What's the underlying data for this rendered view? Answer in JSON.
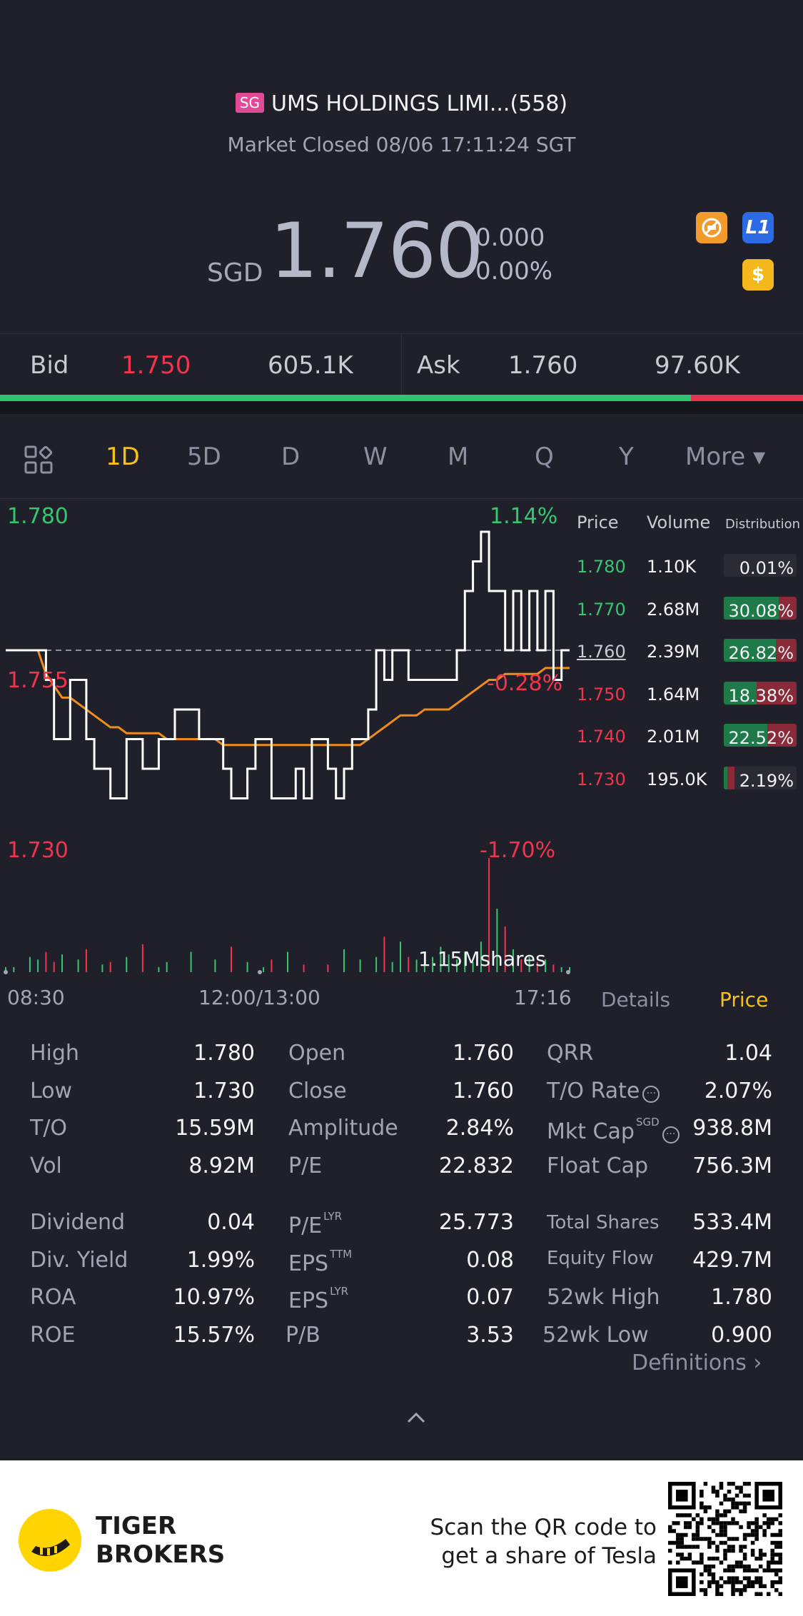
{
  "header": {
    "exchange_tag": "SG",
    "stock_name": "UMS HOLDINGS LIMI...(558)",
    "status": "Market Closed 08/06 17:11:24 SGT"
  },
  "quote": {
    "currency": "SGD",
    "price": "1.760",
    "change": "0.000",
    "change_pct": "0.00%",
    "badges": [
      "no-short-icon",
      "level1-badge",
      "dollar-badge"
    ],
    "badge_l1": "L1",
    "badge_dollar": "$"
  },
  "bidask": {
    "bid_label": "Bid",
    "bid_price": "1.750",
    "bid_size": "605.1K",
    "ask_label": "Ask",
    "ask_price": "1.760",
    "ask_size": "97.60K",
    "bid_share": 0.86
  },
  "periods": [
    "1D",
    "5D",
    "D",
    "W",
    "M",
    "Q",
    "Y",
    "More ▾"
  ],
  "active_period": "1D",
  "chart": {
    "y_high": "1.780",
    "y_high_pct": "1.14%",
    "y_mid_left": "1.755",
    "y_mid_pct": "-0.28%",
    "y_low": "1.730",
    "y_low_pct": "-1.70%",
    "volume_label": "1.15Mshares",
    "time_start": "08:30",
    "time_mid": "12:00/13:00",
    "time_end": "17:16"
  },
  "chart_data": {
    "type": "line",
    "title": "UMS HOLDINGS intraday 1D",
    "ylim": [
      1.73,
      1.78
    ],
    "prev_close": 1.76,
    "series": [
      {
        "name": "price",
        "values": [
          1.76,
          1.76,
          1.76,
          1.76,
          1.76,
          1.755,
          1.745,
          1.745,
          1.755,
          1.755,
          1.745,
          1.74,
          1.74,
          1.735,
          1.735,
          1.745,
          1.745,
          1.74,
          1.74,
          1.745,
          1.745,
          1.75,
          1.75,
          1.75,
          1.745,
          1.745,
          1.745,
          1.74,
          1.735,
          1.735,
          1.74,
          1.745,
          1.745,
          1.735,
          1.735,
          1.735,
          1.74,
          1.735,
          1.745,
          1.745,
          1.74,
          1.735,
          1.74,
          1.745,
          1.745,
          1.75,
          1.76,
          1.755,
          1.76,
          1.76,
          1.755,
          1.755,
          1.755,
          1.755,
          1.755,
          1.755,
          1.76,
          1.77,
          1.775,
          1.78,
          1.77,
          1.77,
          1.76,
          1.77,
          1.76,
          1.77,
          1.76,
          1.77,
          1.755,
          1.76,
          1.76
        ]
      },
      {
        "name": "avg",
        "values": [
          1.76,
          1.76,
          1.76,
          1.76,
          1.76,
          1.756,
          1.754,
          1.752,
          1.752,
          1.751,
          1.75,
          1.749,
          1.748,
          1.747,
          1.747,
          1.746,
          1.746,
          1.746,
          1.746,
          1.746,
          1.745,
          1.745,
          1.745,
          1.745,
          1.745,
          1.745,
          1.745,
          1.744,
          1.744,
          1.744,
          1.744,
          1.744,
          1.744,
          1.744,
          1.744,
          1.744,
          1.744,
          1.744,
          1.744,
          1.744,
          1.744,
          1.744,
          1.744,
          1.744,
          1.744,
          1.745,
          1.746,
          1.747,
          1.748,
          1.749,
          1.749,
          1.749,
          1.75,
          1.75,
          1.75,
          1.75,
          1.751,
          1.752,
          1.753,
          1.754,
          1.755,
          1.755,
          1.756,
          1.756,
          1.756,
          1.756,
          1.756,
          1.757,
          1.757,
          1.757,
          1.757
        ]
      }
    ],
    "volume": [
      0.02,
      0.02,
      0.0,
      0.06,
      0.05,
      0.08,
      0.04,
      0.07,
      0.0,
      0.05,
      0.09,
      0.0,
      0.03,
      0.04,
      0.0,
      0.06,
      0.0,
      0.11,
      0.0,
      0.02,
      0.04,
      0.0,
      0.0,
      0.08,
      0.0,
      0.0,
      0.05,
      0.0,
      0.1,
      0.0,
      0.04,
      0.0,
      0.02,
      0.05,
      0.0,
      0.08,
      0.0,
      0.03,
      0.0,
      0.0,
      0.03,
      0.0,
      0.09,
      0.0,
      0.05,
      0.0,
      0.06,
      0.14,
      0.04,
      0.12,
      0.06,
      0.05,
      0.08,
      0.06,
      0.1,
      0.07,
      0.05,
      0.08,
      0.04,
      0.12,
      0.45,
      0.25,
      0.18,
      0.09,
      0.05,
      0.06,
      0.04,
      0.05,
      0.03,
      0.02,
      0.02
    ]
  },
  "distribution": {
    "headers": [
      "Price",
      "Volume",
      "Distribution"
    ],
    "rows": [
      {
        "price": "1.780",
        "volume": "1.10K",
        "pct": "0.01%",
        "buy": 0.0,
        "sell": 0.0,
        "color": "green"
      },
      {
        "price": "1.770",
        "volume": "2.68M",
        "pct": "30.08%",
        "buy": 0.75,
        "sell": 0.25,
        "color": "green"
      },
      {
        "price": "1.760",
        "volume": "2.39M",
        "pct": "26.82%",
        "buy": 0.72,
        "sell": 0.28,
        "color": "white"
      },
      {
        "price": "1.750",
        "volume": "1.64M",
        "pct": "18.38%",
        "buy": 0.45,
        "sell": 0.55,
        "color": "red"
      },
      {
        "price": "1.740",
        "volume": "2.01M",
        "pct": "22.52%",
        "buy": 0.6,
        "sell": 0.4,
        "color": "red"
      },
      {
        "price": "1.730",
        "volume": "195.0K",
        "pct": "2.19%",
        "buy": 0.05,
        "sell": 0.1,
        "color": "red"
      }
    ]
  },
  "tabs": {
    "details": "Details",
    "price": "Price"
  },
  "stats": {
    "col1": [
      [
        "High",
        "1.780"
      ],
      [
        "Low",
        "1.730"
      ],
      [
        "T/O",
        "15.59M"
      ],
      [
        "Vol",
        "8.92M"
      ],
      [
        "Dividend",
        "0.04"
      ],
      [
        "Div. Yield",
        "1.99%"
      ],
      [
        "ROA",
        "10.97%"
      ],
      [
        "ROE",
        "15.57%"
      ]
    ],
    "col2": [
      [
        "Open",
        "1.760"
      ],
      [
        "Close",
        "1.760"
      ],
      [
        "Amplitude",
        "2.84%"
      ],
      [
        "P/E",
        "22.832"
      ],
      [
        "P/E",
        "25.773"
      ],
      [
        "EPS",
        "0.08"
      ],
      [
        "EPS",
        "0.07"
      ],
      [
        "P/B",
        "3.53"
      ]
    ],
    "col2_sups": [
      "",
      "",
      "",
      "",
      "LYR",
      "TTM",
      "LYR",
      ""
    ],
    "col3": [
      [
        "QRR",
        "1.04"
      ],
      [
        "T/O Rate",
        "2.07%"
      ],
      [
        "Mkt Cap",
        "938.8M"
      ],
      [
        "Float Cap",
        "756.3M"
      ],
      [
        "Total Shares",
        "533.4M"
      ],
      [
        "Equity Flow",
        "429.7M"
      ],
      [
        "52wk High",
        "1.780"
      ],
      [
        "52wk Low",
        "0.900"
      ]
    ],
    "mkt_cap_sup": "SGD",
    "definitions": "Definitions ›"
  },
  "footer": {
    "brand_line1": "TIGER",
    "brand_line2": "BROKERS",
    "scan_line1": "Scan the QR code to",
    "scan_line2": "get a share of Tesla"
  }
}
